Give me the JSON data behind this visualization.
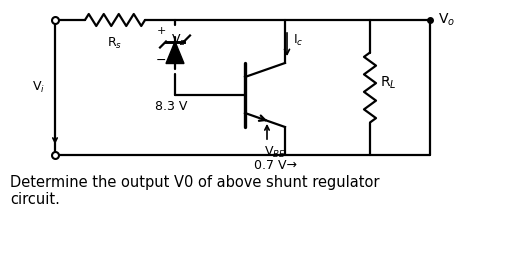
{
  "bg_color": "#ffffff",
  "fig_width": 5.21,
  "fig_height": 2.8,
  "dpi": 100,
  "caption": "Determine the output V0 of above shunt regulator\ncircuit.",
  "caption_fontsize": 10.5
}
